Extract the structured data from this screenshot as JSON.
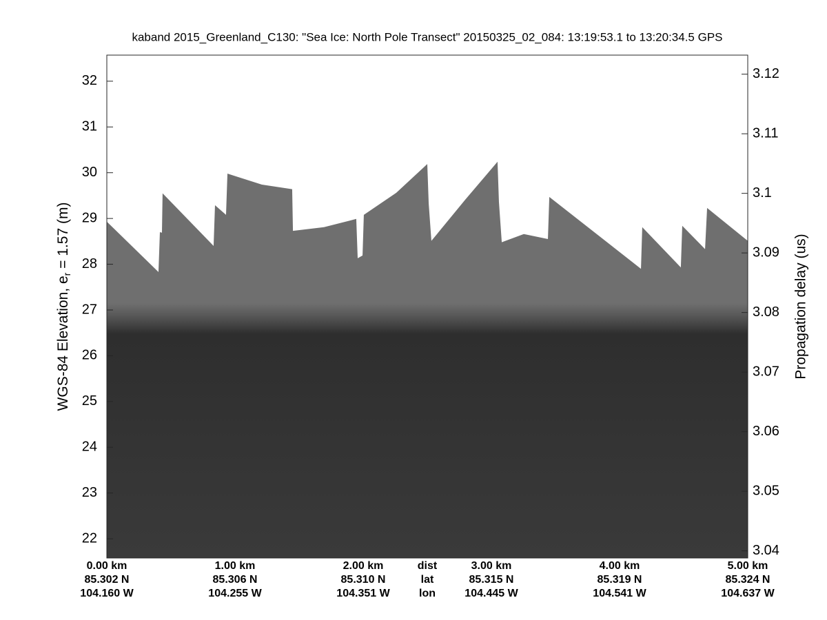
{
  "chart_data": {
    "type": "echogram",
    "title": "kaband 2015_Greenland_C130: \"Sea Ice: North Pole Transect\"  20150325_02_084: 13:19:53.1 to 13:20:34.5 GPS",
    "ylabel": [
      "WGS-84 Elevation, e",
      "r",
      " = 1.57 (m)"
    ],
    "y2label": "Propagation delay (us)",
    "ylim": [
      21.58,
      32.57
    ],
    "yticks": [
      22,
      23,
      24,
      25,
      26,
      27,
      28,
      29,
      30,
      31,
      32
    ],
    "y2lim": [
      3.0388,
      3.1232
    ],
    "y2ticks": [
      3.04,
      3.05,
      3.06,
      3.07,
      3.08,
      3.09,
      3.1,
      3.11,
      3.12
    ],
    "xlim": [
      0,
      5
    ],
    "xticks": [
      {
        "value": 0,
        "label": "0.00 km"
      },
      {
        "value": 1,
        "label": "1.00 km"
      },
      {
        "value": 2,
        "label": "2.00 km"
      },
      {
        "value": 3,
        "label": "3.00 km"
      },
      {
        "value": 4,
        "label": "4.00 km"
      },
      {
        "value": 5,
        "label": "5.00 km"
      }
    ],
    "lat_labels": [
      "85.302 N",
      "85.306 N",
      "85.310 N",
      "85.315 N",
      "85.319 N",
      "85.324 N"
    ],
    "lon_labels": [
      "104.160 W",
      "104.255 W",
      "104.351 W",
      "104.445 W",
      "104.541 W",
      "104.637 W"
    ],
    "row_labels": [
      "dist",
      "lat",
      "lon"
    ],
    "color": "#6f6f6f",
    "x": [
      0,
      0.403,
      0.414,
      0.43,
      0.435,
      0.833,
      0.844,
      0.93,
      0.941,
      1.21,
      1.446,
      1.452,
      1.694,
      1.946,
      1.957,
      1.995,
      2.005,
      2.258,
      2.5,
      2.511,
      2.532,
      2.796,
      3.048,
      3.059,
      3.081,
      3.253,
      3.441,
      3.452,
      4.167,
      4.177,
      4.478,
      4.489,
      4.667,
      4.683,
      5
    ],
    "values": [
      28.93,
      27.83,
      28.7,
      28.69,
      29.55,
      28.4,
      29.29,
      29.08,
      29.98,
      29.74,
      29.64,
      28.73,
      28.81,
      28.99,
      28.13,
      28.19,
      29.08,
      29.56,
      30.19,
      29.33,
      28.51,
      29.41,
      30.24,
      29.36,
      28.48,
      28.66,
      28.55,
      29.47,
      27.9,
      28.81,
      27.93,
      28.84,
      28.33,
      29.23,
      28.51
    ]
  }
}
